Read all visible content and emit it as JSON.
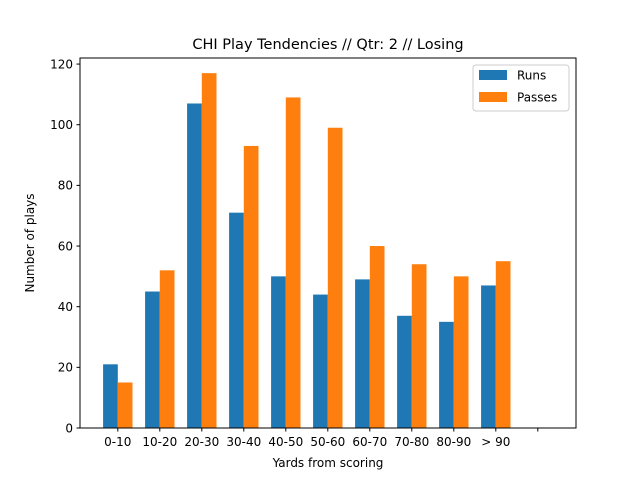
{
  "chart_data": {
    "type": "bar",
    "title": "CHI Play Tendencies // Qtr: 2 // Losing",
    "xlabel": "Yards from scoring",
    "ylabel": "Number of plays",
    "categories": [
      "0-10",
      "10-20",
      "20-30",
      "30-40",
      "40-50",
      "50-60",
      "60-70",
      "70-80",
      "80-90",
      "> 90"
    ],
    "series": [
      {
        "name": "Runs",
        "color": "#1f77b4",
        "values": [
          21,
          45,
          107,
          71,
          50,
          44,
          49,
          37,
          35,
          47
        ]
      },
      {
        "name": "Passes",
        "color": "#ff7f0e",
        "values": [
          15,
          52,
          117,
          93,
          109,
          99,
          60,
          54,
          50,
          55
        ]
      }
    ],
    "ylim": [
      0,
      122
    ],
    "yticks": [
      0,
      20,
      40,
      60,
      80,
      100,
      120
    ],
    "grid": false,
    "legend_position": "top-right"
  }
}
